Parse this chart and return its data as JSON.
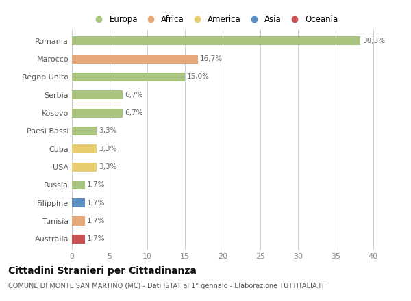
{
  "countries": [
    "Romania",
    "Marocco",
    "Regno Unito",
    "Serbia",
    "Kosovo",
    "Paesi Bassi",
    "Cuba",
    "USA",
    "Russia",
    "Filippine",
    "Tunisia",
    "Australia"
  ],
  "values": [
    38.3,
    16.7,
    15.0,
    6.7,
    6.7,
    3.3,
    3.3,
    3.3,
    1.7,
    1.7,
    1.7,
    1.7
  ],
  "labels": [
    "38,3%",
    "16,7%",
    "15,0%",
    "6,7%",
    "6,7%",
    "3,3%",
    "3,3%",
    "3,3%",
    "1,7%",
    "1,7%",
    "1,7%",
    "1,7%"
  ],
  "continents": [
    "Europa",
    "Africa",
    "Europa",
    "Europa",
    "Europa",
    "Europa",
    "America",
    "America",
    "Europa",
    "Asia",
    "Africa",
    "Oceania"
  ],
  "continent_colors": {
    "Europa": "#a8c47e",
    "Africa": "#e8a97a",
    "America": "#e8ce70",
    "Asia": "#5b8dc0",
    "Oceania": "#c85050"
  },
  "legend_order": [
    "Europa",
    "Africa",
    "America",
    "Asia",
    "Oceania"
  ],
  "xlim": [
    0,
    42
  ],
  "xticks": [
    0,
    5,
    10,
    15,
    20,
    25,
    30,
    35,
    40
  ],
  "title": "Cittadini Stranieri per Cittadinanza",
  "subtitle": "COMUNE DI MONTE SAN MARTINO (MC) - Dati ISTAT al 1° gennaio - Elaborazione TUTTITALIA.IT",
  "bg_color": "#ffffff",
  "grid_color": "#cccccc",
  "bar_height": 0.5
}
